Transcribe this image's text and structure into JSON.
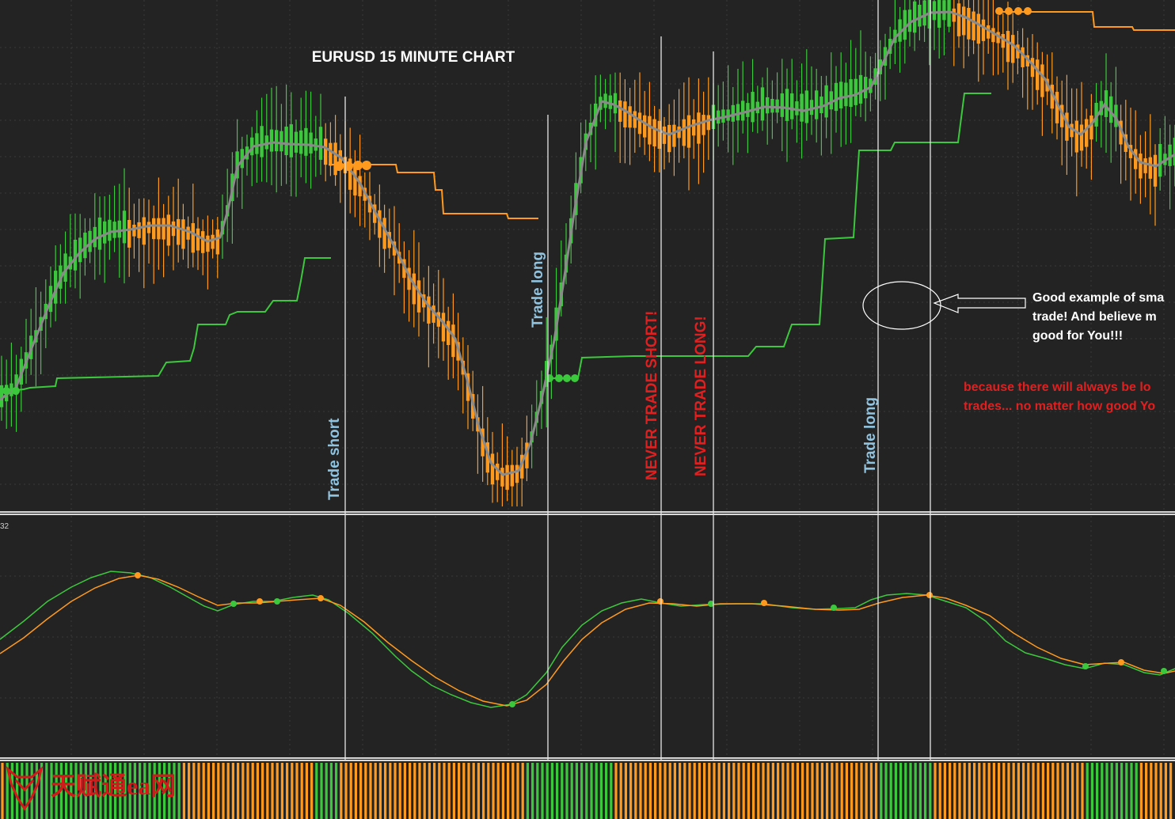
{
  "chart_data": [
    {
      "type": "candlestick",
      "title": "EURUSD 15 MINUTE CHART",
      "colors": {
        "background": "#232323",
        "bull": "#3cc83c",
        "bear": "#ff9a1e",
        "grid": "#3a3a3a",
        "ma_line": "#8a8a8a",
        "stop_upper": "#ff9a1e",
        "stop_lower": "#3cc83c",
        "vline": "#e6e6e6"
      },
      "annotations": {
        "trade_short": "Trade short",
        "trade_long_1": "Trade long",
        "never_short": "NEVER TRADE SHORT!",
        "never_long": "NEVER TRADE LONG!",
        "trade_long_2": "Trade long",
        "note_white": [
          "Good example of sma",
          "trade! And believe m",
          "good for You!!!"
        ],
        "note_red": [
          "because there will always be lo",
          "trades... no matter how good Yo"
        ]
      }
    },
    {
      "type": "line",
      "panel_label": "32",
      "series": [
        {
          "color": "#3cc83c"
        },
        {
          "color": "#ff9a1e"
        }
      ]
    },
    {
      "type": "bar",
      "panel": "histogram",
      "colors": {
        "up": "#3cc83c",
        "down": "#ff9a1e"
      }
    }
  ],
  "watermark": {
    "text": "天赋通ea网",
    "color": "#d21a1a"
  }
}
